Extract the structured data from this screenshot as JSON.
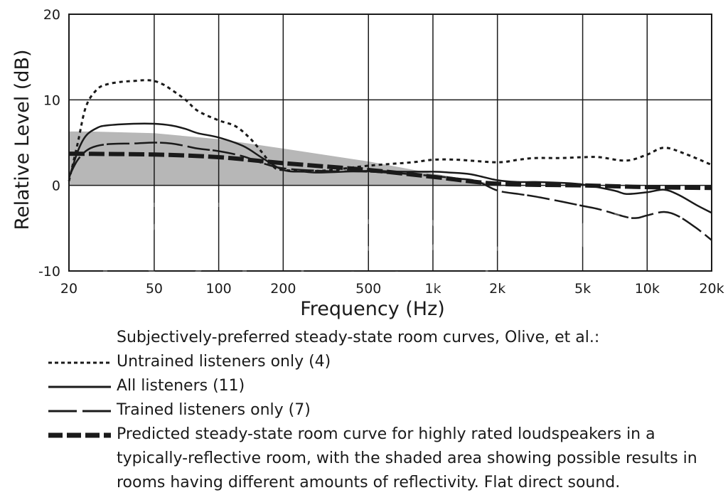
{
  "chart_data": {
    "type": "line",
    "title": "",
    "xlabel": "Frequency (Hz)",
    "ylabel": "Relative Level (dB)",
    "xscale": "log",
    "xlim": [
      20,
      20000
    ],
    "ylim": [
      -10,
      20
    ],
    "grid": true,
    "x_ticks": [
      {
        "value": 20,
        "label": "20"
      },
      {
        "value": 50,
        "label": "50"
      },
      {
        "value": 100,
        "label": "100"
      },
      {
        "value": 200,
        "label": "200"
      },
      {
        "value": 500,
        "label": "500"
      },
      {
        "value": 1000,
        "label": "1k"
      },
      {
        "value": 2000,
        "label": "2k"
      },
      {
        "value": 5000,
        "label": "5k"
      },
      {
        "value": 10000,
        "label": "10k"
      },
      {
        "value": 20000,
        "label": "20k"
      }
    ],
    "y_ticks": [
      {
        "value": 20,
        "label": "20"
      },
      {
        "value": 10,
        "label": "10"
      },
      {
        "value": 0,
        "label": "0"
      },
      {
        "value": -10,
        "label": "-10"
      }
    ],
    "shaded_area": {
      "color": "#b7b7b7",
      "upper": [
        [
          20,
          6.3
        ],
        [
          25,
          6.3
        ],
        [
          50,
          6.1
        ],
        [
          100,
          5.4
        ],
        [
          200,
          4.3
        ],
        [
          500,
          2.8
        ],
        [
          1000,
          1.4
        ],
        [
          2000,
          0.1
        ],
        [
          20000,
          0.0
        ]
      ],
      "lower": [
        [
          20,
          0.0
        ],
        [
          20000,
          0.0
        ]
      ]
    },
    "series": [
      {
        "name": "Untrained listeners only (4)",
        "style": "dotted",
        "values": [
          [
            20,
            0.5
          ],
          [
            22,
            5.0
          ],
          [
            24,
            9.2
          ],
          [
            27,
            11.2
          ],
          [
            30,
            11.8
          ],
          [
            35,
            12.1
          ],
          [
            40,
            12.2
          ],
          [
            45,
            12.3
          ],
          [
            50,
            12.2
          ],
          [
            55,
            11.8
          ],
          [
            60,
            11.2
          ],
          [
            70,
            10.0
          ],
          [
            80,
            8.7
          ],
          [
            100,
            7.6
          ],
          [
            120,
            6.9
          ],
          [
            140,
            5.5
          ],
          [
            160,
            3.8
          ],
          [
            180,
            2.2
          ],
          [
            200,
            1.8
          ],
          [
            300,
            1.7
          ],
          [
            500,
            2.3
          ],
          [
            800,
            2.7
          ],
          [
            1000,
            3.0
          ],
          [
            1300,
            3.0
          ],
          [
            2000,
            2.7
          ],
          [
            2500,
            3.0
          ],
          [
            3000,
            3.2
          ],
          [
            4000,
            3.2
          ],
          [
            5000,
            3.3
          ],
          [
            6000,
            3.3
          ],
          [
            8000,
            2.9
          ],
          [
            10000,
            3.6
          ],
          [
            12000,
            4.4
          ],
          [
            15000,
            3.7
          ],
          [
            20000,
            2.4
          ]
        ]
      },
      {
        "name": "All listeners (11)",
        "style": "solid",
        "values": [
          [
            20,
            0.8
          ],
          [
            22,
            4.0
          ],
          [
            24,
            5.8
          ],
          [
            27,
            6.7
          ],
          [
            30,
            7.0
          ],
          [
            40,
            7.2
          ],
          [
            50,
            7.2
          ],
          [
            60,
            7.0
          ],
          [
            70,
            6.6
          ],
          [
            80,
            6.1
          ],
          [
            100,
            5.6
          ],
          [
            130,
            4.6
          ],
          [
            160,
            3.2
          ],
          [
            200,
            1.8
          ],
          [
            250,
            1.6
          ],
          [
            300,
            1.5
          ],
          [
            500,
            1.7
          ],
          [
            700,
            1.6
          ],
          [
            1000,
            1.6
          ],
          [
            1200,
            1.5
          ],
          [
            1500,
            1.3
          ],
          [
            2000,
            0.6
          ],
          [
            2500,
            0.4
          ],
          [
            3000,
            0.4
          ],
          [
            4000,
            0.3
          ],
          [
            5000,
            0.1
          ],
          [
            7000,
            -0.6
          ],
          [
            8000,
            -1.0
          ],
          [
            10000,
            -0.8
          ],
          [
            12000,
            -0.5
          ],
          [
            14000,
            -1.1
          ],
          [
            17000,
            -2.3
          ],
          [
            20000,
            -3.2
          ]
        ]
      },
      {
        "name": "Trained listeners only (7)",
        "style": "long-dash",
        "values": [
          [
            20,
            1.0
          ],
          [
            22,
            3.0
          ],
          [
            25,
            4.3
          ],
          [
            30,
            4.8
          ],
          [
            40,
            4.9
          ],
          [
            50,
            5.0
          ],
          [
            60,
            4.9
          ],
          [
            70,
            4.6
          ],
          [
            80,
            4.3
          ],
          [
            100,
            4.0
          ],
          [
            130,
            3.4
          ],
          [
            160,
            2.6
          ],
          [
            200,
            2.0
          ],
          [
            300,
            1.7
          ],
          [
            500,
            1.6
          ],
          [
            700,
            1.4
          ],
          [
            1000,
            1.1
          ],
          [
            1300,
            0.8
          ],
          [
            1600,
            0.5
          ],
          [
            2000,
            -0.6
          ],
          [
            2500,
            -1.0
          ],
          [
            3000,
            -1.3
          ],
          [
            4000,
            -1.9
          ],
          [
            5000,
            -2.4
          ],
          [
            6000,
            -2.8
          ],
          [
            8000,
            -3.7
          ],
          [
            9000,
            -3.8
          ],
          [
            10000,
            -3.5
          ],
          [
            12000,
            -3.1
          ],
          [
            14000,
            -3.6
          ],
          [
            17000,
            -5.0
          ],
          [
            20000,
            -6.4
          ]
        ]
      },
      {
        "name": "Predicted steady-state room curve for highly rated loudspeakers in a typically-reflective room, with the shaded area showing possible results in rooms having different amounts of reflectivity.  Flat direct sound.",
        "style": "heavy-dash",
        "values": [
          [
            20,
            3.7
          ],
          [
            50,
            3.6
          ],
          [
            100,
            3.3
          ],
          [
            200,
            2.6
          ],
          [
            500,
            1.8
          ],
          [
            1000,
            1.0
          ],
          [
            2000,
            0.2
          ],
          [
            5000,
            0.0
          ],
          [
            10000,
            -0.2
          ],
          [
            20000,
            -0.3
          ]
        ]
      }
    ]
  },
  "legend": {
    "heading": "Subjectively-preferred steady-state room curves, Olive, et al.:",
    "items": [
      {
        "label": "Untrained listeners only (4)"
      },
      {
        "label": "All listeners (11)"
      },
      {
        "label": "Trained listeners only (7)"
      },
      {
        "label": "Predicted steady-state room curve for highly rated loudspeakers in a typically-reflective room, with the shaded area showing possible results in rooms having different amounts of reflectivity.  Flat direct sound."
      }
    ]
  },
  "watermark": {
    "brand": "photobucket",
    "tagline": "host. store. share."
  }
}
